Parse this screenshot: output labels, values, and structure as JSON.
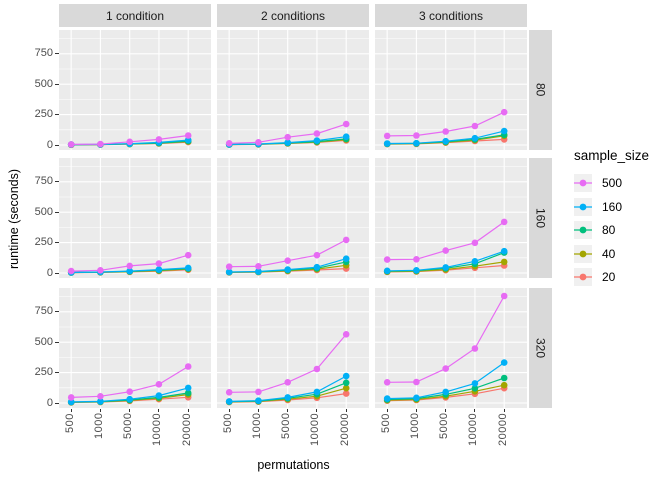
{
  "figure": {
    "background": "#FFFFFF",
    "panel_background": "#EBEBEB",
    "strip_background": "#D9D9D9",
    "grid_color": "#FFFFFF"
  },
  "chart_data": {
    "type": "line",
    "title": "",
    "xlabel": "permutations",
    "ylabel": "runtime (seconds)",
    "x_categories": [
      "500",
      "1000",
      "5000",
      "10000",
      "20000"
    ],
    "y_ticks": [
      "0",
      "250",
      "500",
      "750"
    ],
    "y_tick_values": [
      0,
      250,
      500,
      750
    ],
    "ylim": [
      -45,
      940
    ],
    "grid": "on",
    "legend_position": "right",
    "facet_columns": [
      "1 condition",
      "2 conditions",
      "3 conditions"
    ],
    "facet_rows": [
      "80",
      "160",
      "320"
    ],
    "legend": {
      "title": "sample_size",
      "entries": [
        {
          "label": "500",
          "color": "#E76BF3"
        },
        {
          "label": "160",
          "color": "#00B0F6"
        },
        {
          "label": "80",
          "color": "#00BF7D"
        },
        {
          "label": "40",
          "color": "#A3A500"
        },
        {
          "label": "20",
          "color": "#F8766D"
        }
      ]
    },
    "panels": [
      {
        "facet_row": "80",
        "facet_col": "1 condition",
        "series": [
          {
            "name": "20",
            "values": [
              2,
              3,
              7,
              12,
              24
            ]
          },
          {
            "name": "40",
            "values": [
              2,
              4,
              8,
              14,
              28
            ]
          },
          {
            "name": "80",
            "values": [
              3,
              4,
              9,
              16,
              32
            ]
          },
          {
            "name": "160",
            "values": [
              3,
              5,
              11,
              21,
              40
            ]
          },
          {
            "name": "500",
            "values": [
              5,
              7,
              26,
              46,
              78
            ]
          }
        ]
      },
      {
        "facet_row": "80",
        "facet_col": "2 conditions",
        "series": [
          {
            "name": "20",
            "values": [
              3,
              5,
              12,
              21,
              38
            ]
          },
          {
            "name": "40",
            "values": [
              4,
              6,
              14,
              24,
              44
            ]
          },
          {
            "name": "80",
            "values": [
              4,
              7,
              16,
              28,
              50
            ]
          },
          {
            "name": "160",
            "values": [
              5,
              8,
              20,
              36,
              68
            ]
          },
          {
            "name": "500",
            "values": [
              14,
              22,
              64,
              94,
              172
            ]
          }
        ]
      },
      {
        "facet_row": "80",
        "facet_col": "3 conditions",
        "series": [
          {
            "name": "20",
            "values": [
              7,
              9,
              19,
              33,
              46
            ]
          },
          {
            "name": "40",
            "values": [
              9,
              11,
              22,
              40,
              76
            ]
          },
          {
            "name": "80",
            "values": [
              10,
              13,
              26,
              46,
              84
            ]
          },
          {
            "name": "160",
            "values": [
              12,
              15,
              31,
              56,
              114
            ]
          },
          {
            "name": "500",
            "values": [
              75,
              78,
              111,
              156,
              270
            ]
          }
        ]
      },
      {
        "facet_row": "160",
        "facet_col": "1 condition",
        "series": [
          {
            "name": "20",
            "values": [
              3,
              5,
              9,
              16,
              26
            ]
          },
          {
            "name": "40",
            "values": [
              4,
              6,
              11,
              19,
              31
            ]
          },
          {
            "name": "80",
            "values": [
              4,
              7,
              13,
              23,
              36
            ]
          },
          {
            "name": "160",
            "values": [
              5,
              8,
              16,
              28,
              42
            ]
          },
          {
            "name": "500",
            "values": [
              16,
              22,
              58,
              77,
              146
            ]
          }
        ]
      },
      {
        "facet_row": "160",
        "facet_col": "2 conditions",
        "series": [
          {
            "name": "20",
            "values": [
              5,
              7,
              15,
              25,
              36
            ]
          },
          {
            "name": "40",
            "values": [
              6,
              8,
              18,
              31,
              63
            ]
          },
          {
            "name": "80",
            "values": [
              7,
              10,
              23,
              39,
              91
            ]
          },
          {
            "name": "160",
            "values": [
              8,
              12,
              28,
              48,
              118
            ]
          },
          {
            "name": "500",
            "values": [
              52,
              55,
              101,
              146,
              272
            ]
          }
        ]
      },
      {
        "facet_row": "160",
        "facet_col": "3 conditions",
        "series": [
          {
            "name": "20",
            "values": [
              9,
              12,
              23,
              43,
              62
            ]
          },
          {
            "name": "40",
            "values": [
              11,
              14,
              29,
              56,
              91
            ]
          },
          {
            "name": "80",
            "values": [
              15,
              19,
              39,
              76,
              168
            ]
          },
          {
            "name": "160",
            "values": [
              18,
              22,
              46,
              96,
              179
            ]
          },
          {
            "name": "500",
            "values": [
              110,
              113,
              184,
              248,
              420
            ]
          }
        ]
      },
      {
        "facet_row": "320",
        "facet_col": "1 condition",
        "series": [
          {
            "name": "20",
            "values": [
              5,
              8,
              17,
              31,
              47
            ]
          },
          {
            "name": "40",
            "values": [
              6,
              9,
              21,
              39,
              70
            ]
          },
          {
            "name": "80",
            "values": [
              7,
              11,
              25,
              46,
              82
            ]
          },
          {
            "name": "160",
            "values": [
              9,
              13,
              31,
              61,
              124
            ]
          },
          {
            "name": "500",
            "values": [
              46,
              55,
              93,
              154,
              300
            ]
          }
        ]
      },
      {
        "facet_row": "320",
        "facet_col": "2 conditions",
        "series": [
          {
            "name": "20",
            "values": [
              7,
              11,
              25,
              43,
              77
            ]
          },
          {
            "name": "40",
            "values": [
              9,
              13,
              31,
              56,
              122
            ]
          },
          {
            "name": "80",
            "values": [
              11,
              16,
              39,
              72,
              166
            ]
          },
          {
            "name": "160",
            "values": [
              13,
              19,
              46,
              91,
              221
            ]
          },
          {
            "name": "500",
            "values": [
              88,
              91,
              170,
              280,
              565
            ]
          }
        ]
      },
      {
        "facet_row": "320",
        "facet_col": "3 conditions",
        "series": [
          {
            "name": "20",
            "values": [
              19,
              25,
              46,
              76,
              122
            ]
          },
          {
            "name": "40",
            "values": [
              23,
              29,
              56,
              96,
              146
            ]
          },
          {
            "name": "80",
            "values": [
              29,
              36,
              71,
              121,
              206
            ]
          },
          {
            "name": "160",
            "values": [
              36,
              43,
              91,
              161,
              332
            ]
          },
          {
            "name": "500",
            "values": [
              170,
              173,
              283,
              448,
              880
            ]
          }
        ]
      }
    ]
  }
}
